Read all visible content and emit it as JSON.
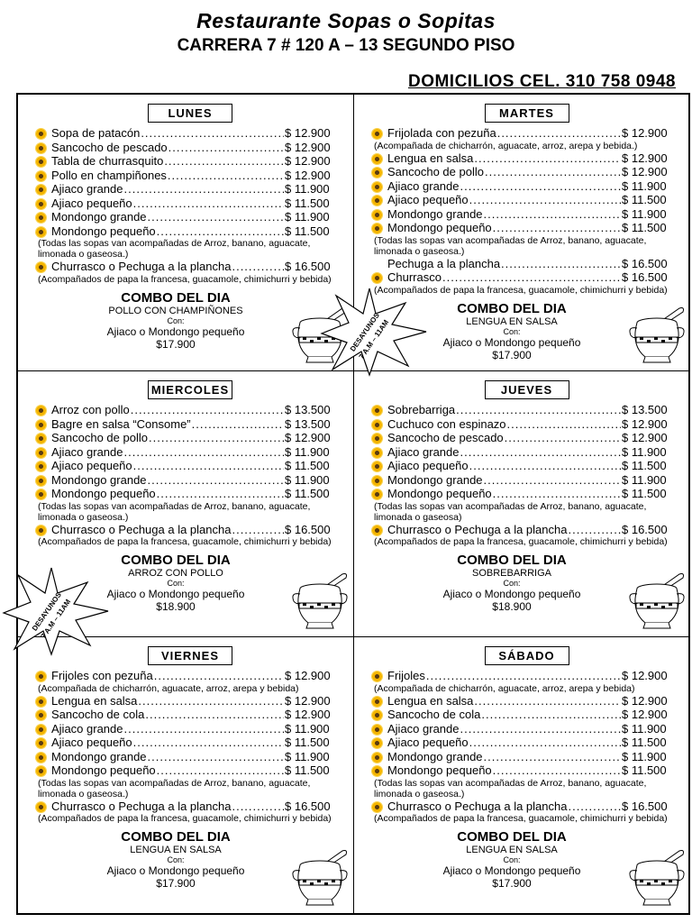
{
  "header": {
    "title": "Restaurante Sopas o Sopitas",
    "address": "CARRERA 7 # 120 A – 13 SEGUNDO PISO",
    "delivery": "DOMICILIOS CEL. 310  758 0948"
  },
  "burst": {
    "line1": "DESAYUNOS",
    "line2": "7 A.M – 11AM"
  },
  "panels": [
    {
      "day": "LUNES",
      "items": [
        {
          "name": "Sopa de patacón",
          "price": "$ 12.900"
        },
        {
          "name": "Sancocho de pescado",
          "price": "$ 12.900"
        },
        {
          "name": "Tabla de churrasquito",
          "price": "$ 12.900"
        },
        {
          "name": "Pollo en champiñones",
          "price": "$ 12.900"
        },
        {
          "name": "Ajiaco grande",
          "price": "$  11.900"
        },
        {
          "name": "Ajiaco pequeño",
          "price": "$  11.500"
        },
        {
          "name": "Mondongo grande",
          "price": "$  11.900"
        },
        {
          "name": "Mondongo pequeño",
          "price": "$  11.500",
          "note": "(Todas las sopas van acompañadas de Arroz, banano, aguacate, limonada o gaseosa.)"
        },
        {
          "name": "Churrasco o Pechuga a la plancha",
          "price": "$  16.500",
          "note": "(Acompañados de papa  la francesa, guacamole, chimichurri y bebida)"
        }
      ],
      "combo": {
        "title": "COMBO DEL DIA",
        "dish": "POLLO CON CHAMPIÑONES",
        "con": "Con:",
        "options": "Ajiaco o Mondongo pequeño",
        "price": "$17.900"
      }
    },
    {
      "day": "MARTES",
      "items": [
        {
          "name": "Frijolada con pezuña",
          "price": "$  12.900",
          "note": "(Acompañada de chicharrón, aguacate, arroz, arepa y bebida.)"
        },
        {
          "name": "Lengua en salsa",
          "price": "$  12.900"
        },
        {
          "name": "Sancocho de pollo",
          "price": "$ 12.900"
        },
        {
          "name": "Ajiaco grande",
          "price": "$  11.900"
        },
        {
          "name": "Ajiaco pequeño",
          "price": "$  11.500"
        },
        {
          "name": "Mondongo grande",
          "price": "$  11.900"
        },
        {
          "name": "Mondongo pequeño",
          "price": "$  11.500",
          "note": "(Todas las sopas van acompañadas de Arroz, banano, aguacate, limonada o gaseosa.)"
        },
        {
          "name": "Pechuga a la plancha",
          "price": "$ 16.500",
          "nobullet": true
        },
        {
          "name": "Churrasco",
          "price": "$  16.500",
          "note": "(Acompañados de papa  la francesa, guacamole, chimichurri y bebida)"
        }
      ],
      "combo": {
        "title": "COMBO DEL DIA",
        "dish": "LENGUA EN SALSA",
        "con": "Con:",
        "options": "Ajiaco o Mondongo pequeño",
        "price": "$17.900"
      }
    },
    {
      "day": "MIERCOLES",
      "items": [
        {
          "name": "Arroz con pollo",
          "price": "$  13.500"
        },
        {
          "name": "Bagre en salsa “Consome”",
          "price": "$ 13.500"
        },
        {
          "name": "Sancocho de pollo",
          "price": "$  12.900"
        },
        {
          "name": "Ajiaco grande",
          "price": "$  11.900"
        },
        {
          "name": "Ajiaco pequeño",
          "price": "$  11.500"
        },
        {
          "name": "Mondongo grande",
          "price": "$  11.900"
        },
        {
          "name": "Mondongo pequeño",
          "price": "$  11.500",
          "note": "(Todas las sopas van acompañadas de Arroz, banano, aguacate, limonada o gaseosa.)"
        },
        {
          "name": "Churrasco o Pechuga a la plancha",
          "price": "$  16.500",
          "note": "(Acompañados de papa  la francesa, guacamole, chimichurri y bebida)"
        }
      ],
      "combo": {
        "title": "COMBO DEL DIA",
        "dish": "ARROZ CON POLLO",
        "con": "Con:",
        "options": "Ajiaco o Mondongo pequeño",
        "price": "$18.900"
      }
    },
    {
      "day": "JUEVES",
      "items": [
        {
          "name": "Sobrebarriga",
          "price": "$  13.500"
        },
        {
          "name": "Cuchuco con espinazo",
          "price": "$  12.900"
        },
        {
          "name": "Sancocho de pescado",
          "price": "$  12.900"
        },
        {
          "name": "Ajiaco grande",
          "price": "$  11.900"
        },
        {
          "name": "Ajiaco pequeño",
          "price": "$  11.500"
        },
        {
          "name": "Mondongo grande",
          "price": "$  11.900"
        },
        {
          "name": "Mondongo pequeño",
          "price": "$  11.500",
          "note": "(Todas las sopas van acompañadas de Arroz, banano, aguacate, limonada o gaseosa)"
        },
        {
          "name": "Churrasco o Pechuga a la plancha",
          "price": "$  16.500",
          "note": "(Acompañados de papa  la francesa, guacamole, chimichurri y bebida)"
        }
      ],
      "combo": {
        "title": "COMBO DEL DIA",
        "dish": "SOBREBARRIGA",
        "con": "Con:",
        "options": "Ajiaco o Mondongo pequeño",
        "price": "$18.900"
      }
    },
    {
      "day": "VIERNES",
      "items": [
        {
          "name": "Frijoles con pezuña",
          "price": "$  12.900",
          "note": "(Acompañada de chicharrón, aguacate, arroz, arepa y bebida)"
        },
        {
          "name": "Lengua en salsa",
          "price": "$ 12.900"
        },
        {
          "name": "Sancocho de cola",
          "price": "$  12.900"
        },
        {
          "name": "Ajiaco grande",
          "price": "$ 11.900"
        },
        {
          "name": "Ajiaco pequeño",
          "price": "$ 11.500"
        },
        {
          "name": "Mondongo grande",
          "price": "$ 11.900"
        },
        {
          "name": "Mondongo pequeño",
          "price": "$ 11.500",
          "note": "(Todas las sopas van acompañadas de Arroz, banano, aguacate, limonada o gaseosa.)"
        },
        {
          "name": "Churrasco o Pechuga a la plancha",
          "price": "$  16.500",
          "note": "(Acompañados de papa  la francesa, guacamole, chimichurri y bebida)"
        }
      ],
      "combo": {
        "title": "COMBO DEL DIA",
        "dish": "LENGUA EN SALSA",
        "con": "Con:",
        "options": "Ajiaco o Mondongo pequeño",
        "price": "$17.900"
      }
    },
    {
      "day": "SÁBADO",
      "items": [
        {
          "name": "Frijoles",
          "price": "$  12.900",
          "note": "(Acompañada de chicharrón, aguacate, arroz, arepa y bebida)"
        },
        {
          "name": "Lengua en salsa",
          "price": "$ 12.900"
        },
        {
          "name": "Sancocho de cola",
          "price": "$ 12.900"
        },
        {
          "name": "Ajiaco grande",
          "price": "$ 11.900"
        },
        {
          "name": "Ajiaco pequeño",
          "price": "$ 11.500"
        },
        {
          "name": "Mondongo grande",
          "price": "$ 11.900"
        },
        {
          "name": "Mondongo pequeño",
          "price": "$ 11.500",
          "note": "(Todas las sopas van acompañadas de Arroz, banano, aguacate, limonada o gaseosa.)"
        },
        {
          "name": "Churrasco o Pechuga a la plancha",
          "price": "$  16.500",
          "note": "(Acompañados de papa  la francesa, guacamole, chimichurri y bebida)"
        }
      ],
      "combo": {
        "title": "COMBO DEL DIA",
        "dish": "LENGUA EN SALSA",
        "con": "Con:",
        "options": "Ajiaco o Mondongo pequeño",
        "price": "$17.900"
      }
    }
  ],
  "colors": {
    "bullet": "#f4b400",
    "text": "#000000"
  },
  "icons": {
    "bullet": "sunflower-icon",
    "pot": "soup-pot-icon"
  }
}
